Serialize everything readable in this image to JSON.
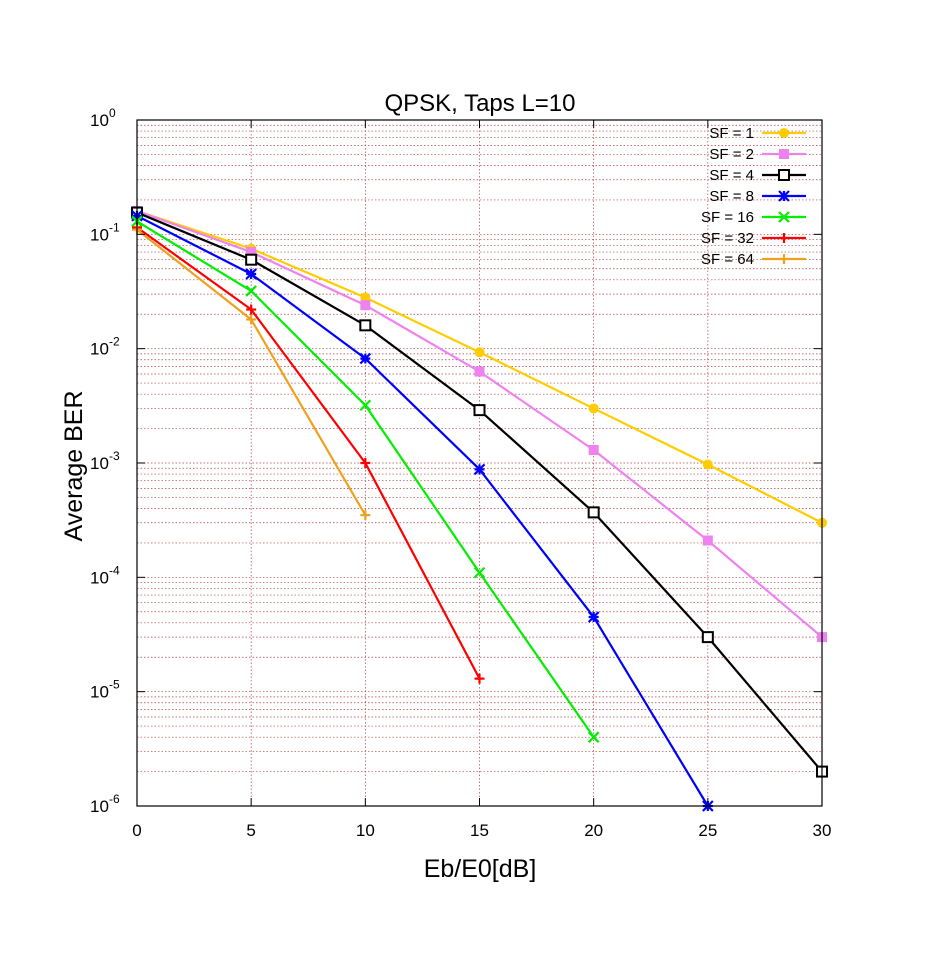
{
  "chart_data": {
    "type": "line",
    "title": "QPSK, Taps L=10",
    "xlabel": "Eb/E0[dB]",
    "ylabel": "Average BER",
    "xlim": [
      0,
      30
    ],
    "ylim": [
      1e-06,
      1
    ],
    "yscale": "log",
    "grid": true,
    "legend_position": "top-right",
    "x_ticks": [
      "0",
      "5",
      "10",
      "15",
      "20",
      "25",
      "30"
    ],
    "y_ticks": [
      {
        "base": "10",
        "exp": "0"
      },
      {
        "base": "10",
        "exp": "-1"
      },
      {
        "base": "10",
        "exp": "-2"
      },
      {
        "base": "10",
        "exp": "-3"
      },
      {
        "base": "10",
        "exp": "-4"
      },
      {
        "base": "10",
        "exp": "-5"
      },
      {
        "base": "10",
        "exp": "-6"
      }
    ],
    "series": [
      {
        "name": "SF = 1",
        "color": "#ffcc00",
        "marker": "circle",
        "x": [
          0,
          5,
          10,
          15,
          20,
          25,
          30
        ],
        "y": [
          0.16,
          0.075,
          0.028,
          0.0093,
          0.003,
          0.00097,
          0.0003
        ]
      },
      {
        "name": "SF = 2",
        "color": "#ee82ee",
        "marker": "square-filled",
        "x": [
          0,
          5,
          10,
          15,
          20,
          25,
          30
        ],
        "y": [
          0.16,
          0.07,
          0.024,
          0.0063,
          0.0013,
          0.00021,
          3e-05
        ]
      },
      {
        "name": "SF = 4",
        "color": "#000000",
        "marker": "square-open",
        "x": [
          0,
          5,
          10,
          15,
          20,
          25,
          30
        ],
        "y": [
          0.155,
          0.06,
          0.016,
          0.0029,
          0.00037,
          3e-05,
          2e-06
        ]
      },
      {
        "name": "SF = 8",
        "color": "#0000ff",
        "marker": "star",
        "x": [
          0,
          5,
          10,
          15,
          20,
          25
        ],
        "y": [
          0.145,
          0.045,
          0.0082,
          0.00088,
          4.5e-05,
          1e-06
        ]
      },
      {
        "name": "SF = 16",
        "color": "#00ee00",
        "marker": "x",
        "x": [
          0,
          5,
          10,
          15,
          20
        ],
        "y": [
          0.13,
          0.032,
          0.0032,
          0.00011,
          4e-06
        ]
      },
      {
        "name": "SF = 32",
        "color": "#ff0000",
        "marker": "plus",
        "x": [
          0,
          5,
          10,
          15
        ],
        "y": [
          0.115,
          0.022,
          0.001,
          1.3e-05
        ]
      },
      {
        "name": "SF = 64",
        "color": "#f0a020",
        "marker": "plus",
        "x": [
          0,
          5,
          10
        ],
        "y": [
          0.11,
          0.018,
          0.00035
        ]
      }
    ]
  }
}
